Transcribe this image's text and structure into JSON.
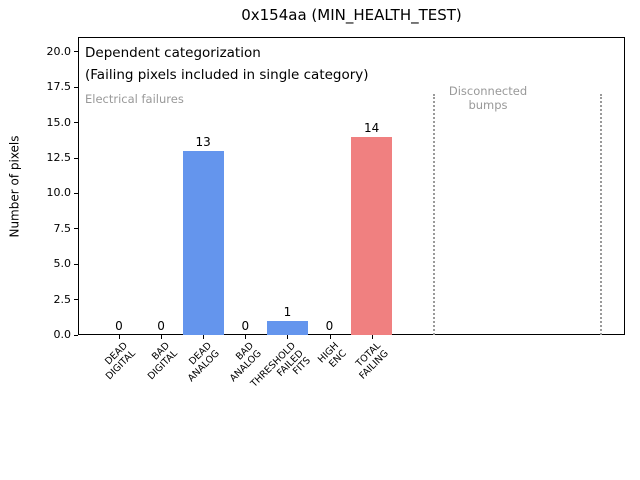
{
  "chart_data": {
    "type": "bar",
    "title": "0x154aa (MIN_HEALTH_TEST)",
    "ylabel": "Number of pixels",
    "xlabel": "",
    "categories": [
      "DEAD\nDIGITAL",
      "BAD\nDIGITAL",
      "DEAD\nANALOG",
      "BAD\nANALOG",
      "THRESHOLD\nFAILED\nFITS",
      "HIGH\nENC",
      "TOTAL\nFAILING"
    ],
    "values": [
      0,
      0,
      13,
      0,
      1,
      0,
      14
    ],
    "bar_value_labels": [
      "0",
      "0",
      "13",
      "0",
      "1",
      "0",
      "14"
    ],
    "bar_colors": [
      "#6495ED",
      "#6495ED",
      "#6495ED",
      "#6495ED",
      "#6495ED",
      "#6495ED",
      "#F08080"
    ],
    "ylim": [
      0,
      21.05
    ],
    "yticks": [
      0,
      2.5,
      5,
      7.5,
      10,
      12.5,
      15,
      17.5,
      20
    ],
    "ytick_labels": [
      "0.0",
      "2.5",
      "5.0",
      "7.5",
      "10.0",
      "12.5",
      "15.0",
      "17.5",
      "20.0"
    ],
    "grid": false,
    "legend": null,
    "annotations": {
      "dependent_line1": "Dependent categorization",
      "dependent_line2": "(Failing pixels included in single category)",
      "electrical_failures": "Electrical failures",
      "disconnected_bumps": "Disconnected\nbumps"
    }
  },
  "colors": {
    "bar_blue": "#6495ED",
    "bar_red": "#F08080",
    "annotation_gray": "#999999",
    "axis_color": "#000000",
    "background": "#ffffff"
  }
}
